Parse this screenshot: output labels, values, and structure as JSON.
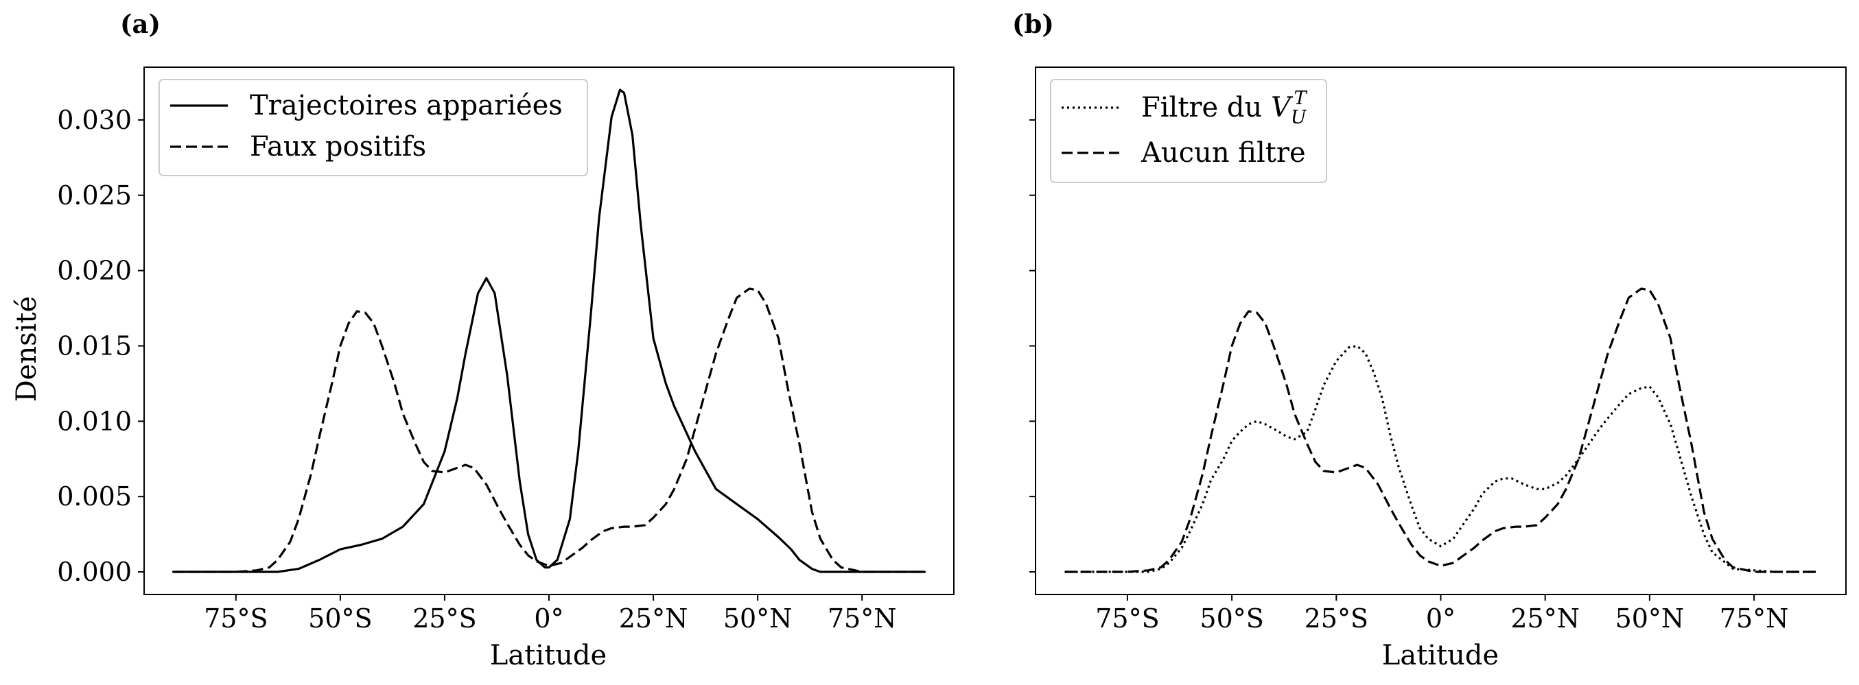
{
  "chart_data": [
    {
      "panel": "(a)",
      "type": "line",
      "xlabel": "Latitude",
      "ylabel": "Densité",
      "xlim": [
        -97,
        97
      ],
      "ylim": [
        -0.0015,
        0.0335
      ],
      "xticks": [
        -75,
        -50,
        -25,
        0,
        25,
        50,
        75
      ],
      "xtick_labels": [
        "75°S",
        "50°S",
        "25°S",
        "0°",
        "25°N",
        "50°N",
        "75°N"
      ],
      "yticks": [
        0.0,
        0.005,
        0.01,
        0.015,
        0.02,
        0.025,
        0.03
      ],
      "ytick_labels": [
        "0.000",
        "0.005",
        "0.010",
        "0.015",
        "0.020",
        "0.025",
        "0.030"
      ],
      "legend_position": "top-left",
      "series": [
        {
          "name": "Trajectoires appariées",
          "style": "solid",
          "x": [
            -90,
            -80,
            -70,
            -65,
            -60,
            -55,
            -50,
            -45,
            -40,
            -35,
            -30,
            -25,
            -22,
            -20,
            -17,
            -15,
            -13,
            -10,
            -7,
            -5,
            -3,
            -1,
            0,
            2,
            5,
            7,
            10,
            12,
            15,
            17,
            18,
            20,
            22,
            25,
            28,
            30,
            35,
            40,
            45,
            50,
            55,
            58,
            60,
            63,
            65,
            70,
            80,
            90
          ],
          "y": [
            0.0,
            0.0,
            0.0,
            0.0,
            0.0002,
            0.0008,
            0.0015,
            0.0018,
            0.0022,
            0.003,
            0.0045,
            0.008,
            0.0115,
            0.0145,
            0.0185,
            0.0195,
            0.0185,
            0.013,
            0.006,
            0.0025,
            0.0008,
            0.0003,
            0.0003,
            0.0008,
            0.0035,
            0.008,
            0.017,
            0.0235,
            0.0302,
            0.032,
            0.0318,
            0.029,
            0.023,
            0.0155,
            0.0125,
            0.011,
            0.008,
            0.0055,
            0.0045,
            0.0035,
            0.0023,
            0.0015,
            0.0008,
            0.0002,
            0.0,
            0.0,
            0.0,
            0.0
          ]
        },
        {
          "name": "Faux positifs",
          "style": "dashed",
          "x": [
            -90,
            -80,
            -75,
            -70,
            -67,
            -65,
            -62,
            -60,
            -57,
            -55,
            -52,
            -50,
            -48,
            -46,
            -44,
            -42,
            -40,
            -37,
            -35,
            -32,
            -30,
            -28,
            -25,
            -22,
            -20,
            -18,
            -15,
            -12,
            -10,
            -7,
            -5,
            -3,
            0,
            3,
            5,
            8,
            10,
            13,
            15,
            18,
            20,
            23,
            25,
            28,
            30,
            33,
            35,
            38,
            40,
            43,
            45,
            48,
            50,
            52,
            55,
            57,
            60,
            63,
            65,
            68,
            70,
            75,
            80,
            90
          ],
          "y": [
            0.0,
            0.0,
            0.0,
            0.0001,
            0.0003,
            0.0008,
            0.002,
            0.0035,
            0.0065,
            0.009,
            0.0125,
            0.015,
            0.0165,
            0.0173,
            0.0172,
            0.0165,
            0.015,
            0.0125,
            0.0105,
            0.0085,
            0.0073,
            0.0067,
            0.0066,
            0.0069,
            0.0071,
            0.0069,
            0.0058,
            0.0042,
            0.0032,
            0.0018,
            0.0011,
            0.0007,
            0.0004,
            0.0006,
            0.001,
            0.0016,
            0.0021,
            0.0027,
            0.0029,
            0.003,
            0.003,
            0.0031,
            0.0036,
            0.0045,
            0.0055,
            0.0075,
            0.0095,
            0.0125,
            0.0145,
            0.0168,
            0.0182,
            0.0188,
            0.0187,
            0.0178,
            0.0155,
            0.0125,
            0.0085,
            0.004,
            0.0022,
            0.0008,
            0.0003,
            0.0,
            0.0,
            0.0
          ]
        }
      ]
    },
    {
      "panel": "(b)",
      "type": "line",
      "xlabel": "Latitude",
      "ylabel": "",
      "xlim": [
        -97,
        97
      ],
      "ylim": [
        -0.0015,
        0.0335
      ],
      "xticks": [
        -75,
        -50,
        -25,
        0,
        25,
        50,
        75
      ],
      "xtick_labels": [
        "75°S",
        "50°S",
        "25°S",
        "0°",
        "25°N",
        "50°N",
        "75°N"
      ],
      "yticks": [
        0.0,
        0.005,
        0.01,
        0.015,
        0.02,
        0.025,
        0.03
      ],
      "ytick_labels": [],
      "legend_position": "top-left",
      "series": [
        {
          "name": "Filtre du V_U^T",
          "style": "dotted",
          "x": [
            -90,
            -80,
            -70,
            -67,
            -65,
            -62,
            -60,
            -57,
            -55,
            -52,
            -50,
            -48,
            -46,
            -44,
            -42,
            -40,
            -37,
            -35,
            -32,
            -30,
            -28,
            -25,
            -22,
            -20,
            -18,
            -16,
            -14,
            -12,
            -10,
            -7,
            -5,
            -3,
            0,
            3,
            5,
            8,
            10,
            13,
            15,
            17,
            20,
            23,
            25,
            28,
            30,
            33,
            35,
            38,
            40,
            43,
            45,
            48,
            50,
            52,
            55,
            57,
            60,
            63,
            65,
            70,
            80,
            90
          ],
          "y": [
            0.0,
            0.0,
            0.0,
            0.0002,
            0.0006,
            0.0016,
            0.0027,
            0.0045,
            0.0061,
            0.0075,
            0.0087,
            0.0093,
            0.0098,
            0.01,
            0.0098,
            0.0095,
            0.009,
            0.0088,
            0.0093,
            0.0108,
            0.0124,
            0.014,
            0.0149,
            0.015,
            0.0145,
            0.0132,
            0.0115,
            0.009,
            0.0069,
            0.0044,
            0.0029,
            0.0022,
            0.0017,
            0.0022,
            0.003,
            0.0042,
            0.0052,
            0.006,
            0.0062,
            0.0062,
            0.0058,
            0.0055,
            0.0055,
            0.0059,
            0.0064,
            0.0075,
            0.0083,
            0.0095,
            0.0102,
            0.0112,
            0.0118,
            0.0122,
            0.0123,
            0.0116,
            0.0098,
            0.0079,
            0.005,
            0.0025,
            0.0013,
            0.0002,
            0.0,
            0.0
          ]
        },
        {
          "name": "Aucun filtre",
          "style": "dashed",
          "x": [
            -90,
            -80,
            -75,
            -70,
            -67,
            -65,
            -62,
            -60,
            -57,
            -55,
            -52,
            -50,
            -48,
            -46,
            -44,
            -42,
            -40,
            -37,
            -35,
            -32,
            -30,
            -28,
            -25,
            -22,
            -20,
            -18,
            -15,
            -12,
            -10,
            -7,
            -5,
            -3,
            0,
            3,
            5,
            8,
            10,
            13,
            15,
            18,
            20,
            23,
            25,
            28,
            30,
            33,
            35,
            38,
            40,
            43,
            45,
            48,
            50,
            52,
            55,
            57,
            60,
            63,
            65,
            68,
            70,
            75,
            80,
            90
          ],
          "y": [
            0.0,
            0.0,
            0.0,
            0.0001,
            0.0003,
            0.0008,
            0.002,
            0.0035,
            0.0065,
            0.009,
            0.0125,
            0.015,
            0.0165,
            0.0173,
            0.0172,
            0.0165,
            0.015,
            0.0125,
            0.0105,
            0.0085,
            0.0073,
            0.0067,
            0.0066,
            0.0069,
            0.0071,
            0.0069,
            0.0058,
            0.0042,
            0.0032,
            0.0018,
            0.0011,
            0.0007,
            0.0004,
            0.0006,
            0.001,
            0.0016,
            0.0021,
            0.0027,
            0.0029,
            0.003,
            0.003,
            0.0031,
            0.0036,
            0.0045,
            0.0055,
            0.0075,
            0.0095,
            0.0125,
            0.0145,
            0.0168,
            0.0182,
            0.0188,
            0.0187,
            0.0178,
            0.0155,
            0.0125,
            0.0085,
            0.004,
            0.0022,
            0.0008,
            0.0003,
            0.0,
            0.0,
            0.0
          ]
        }
      ]
    }
  ]
}
